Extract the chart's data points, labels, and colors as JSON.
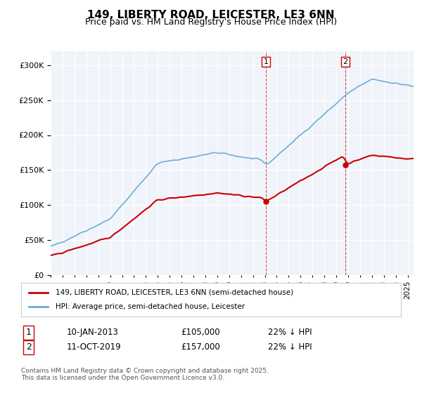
{
  "title": "149, LIBERTY ROAD, LEICESTER, LE3 6NN",
  "subtitle": "Price paid vs. HM Land Registry's House Price Index (HPI)",
  "legend_line1": "149, LIBERTY ROAD, LEICESTER, LE3 6NN (semi-detached house)",
  "legend_line2": "HPI: Average price, semi-detached house, Leicester",
  "marker1_date": "10-JAN-2013",
  "marker1_price": 105000,
  "marker1_hpi": "22% ↓ HPI",
  "marker2_date": "11-OCT-2019",
  "marker2_price": 157000,
  "marker2_hpi": "22% ↓ HPI",
  "footnote": "Contains HM Land Registry data © Crown copyright and database right 2025.\nThis data is licensed under the Open Government Licence v3.0.",
  "hpi_color": "#6baed6",
  "price_color": "#cc0000",
  "marker_color": "#cc0000",
  "bg_color": "#f0f4fa",
  "plot_bg": "#f0f4fa",
  "ylim": [
    0,
    320000
  ],
  "yticks": [
    0,
    50000,
    100000,
    150000,
    200000,
    250000,
    300000
  ],
  "xlim_start": 1995.0,
  "xlim_end": 2025.5
}
